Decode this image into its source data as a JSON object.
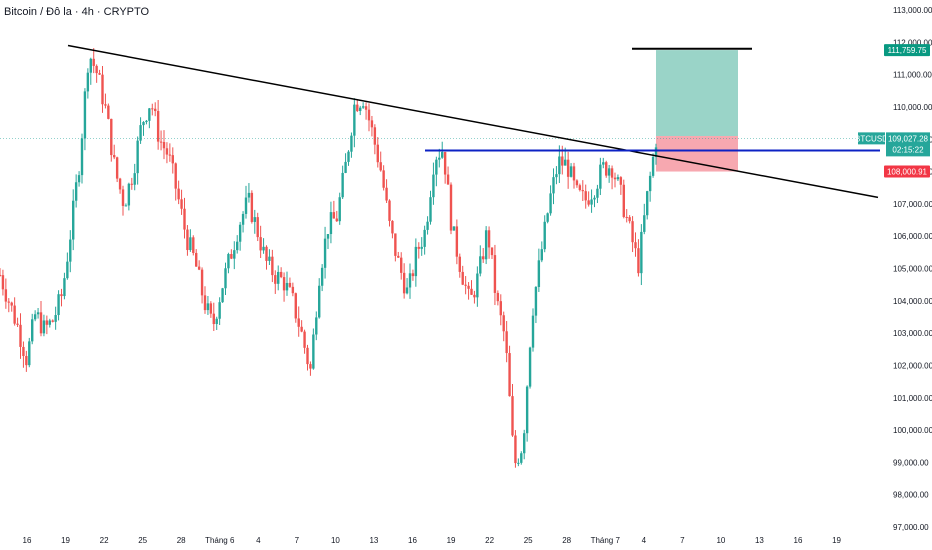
{
  "header": {
    "title": "Bitcoin / Đô la · 4h · CRYPTO"
  },
  "colors": {
    "up": "#26a69a",
    "down": "#ef5350",
    "trendline": "#000000",
    "level": "#0c22c4",
    "target_zone": "#9ad4c8",
    "stop_zone": "#f7a8b0",
    "price_tag": "#26a69a",
    "stop_tag": "#f23645",
    "target_tag": "#089981"
  },
  "chart_data": {
    "type": "candlestick",
    "symbol": "BTCUSD",
    "interval": "4h",
    "ylim": [
      97000,
      113000
    ],
    "y_ticks": [
      "97,000.00",
      "98,000.00",
      "99,000.00",
      "100,000.00",
      "101,000.00",
      "102,000.00",
      "103,000.00",
      "104,000.00",
      "105,000.00",
      "106,000.00",
      "107,000.00",
      "108,000.00",
      "109,000.00",
      "110,000.00",
      "111,000.00",
      "112,000.00",
      "113,000.00"
    ],
    "x_ticks": [
      "16",
      "19",
      "22",
      "25",
      "28",
      "Tháng 6",
      "4",
      "7",
      "10",
      "13",
      "16",
      "19",
      "22",
      "25",
      "28",
      "Tháng 7",
      "4",
      "7",
      "10",
      "13",
      "16",
      "19"
    ],
    "price_path": [
      104800,
      104000,
      103200,
      102200,
      103600,
      103100,
      103400,
      104200,
      106200,
      108400,
      111700,
      111000,
      109800,
      108000,
      107000,
      108000,
      109500,
      110200,
      109000,
      108500,
      107300,
      106000,
      105200,
      104000,
      103200,
      104400,
      105400,
      106400,
      107100,
      106200,
      105200,
      104800,
      104600,
      104000,
      103000,
      101800,
      104800,
      106300,
      106600,
      108200,
      110100,
      110300,
      109200,
      108000,
      106200,
      105100,
      104200,
      105500,
      106200,
      108500,
      108700,
      106200,
      105000,
      103900,
      104800,
      106200,
      104000,
      102800,
      98900,
      99600,
      103600,
      105400,
      107100,
      108300,
      108200,
      107300,
      107100,
      107500,
      108100,
      108200,
      107300,
      106200,
      105100,
      107200,
      109000
    ],
    "current_price": "109,027.28",
    "countdown": "02:15:22",
    "stop_price": 108000.91,
    "stop_label": "108,000.91",
    "target_price": 111759.75,
    "target_label": "111,759.75",
    "entry_price": 108650,
    "level_price": 108650,
    "top_line_price": 111800,
    "trendline": {
      "start": {
        "x": "19",
        "y": 111900
      },
      "end": {
        "x": "19",
        "y": 107200
      }
    }
  }
}
